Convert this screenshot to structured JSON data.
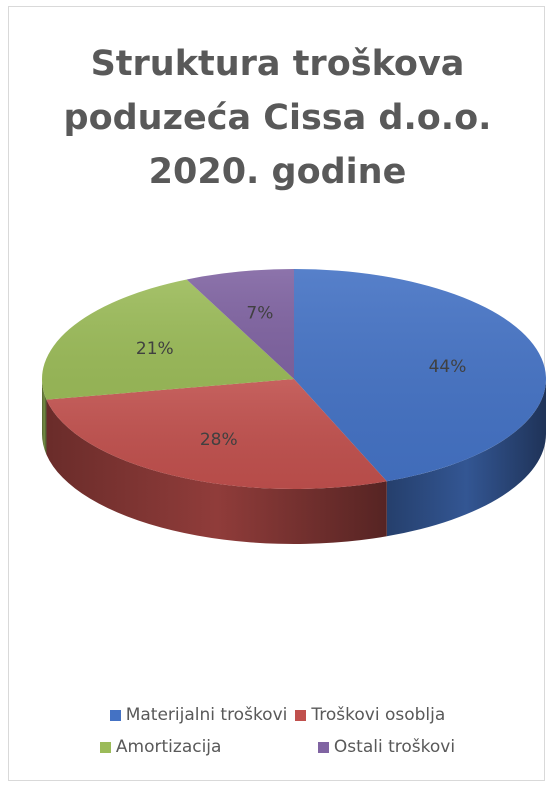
{
  "chart_data": {
    "type": "pie",
    "style": "3d",
    "title_lines": [
      "Struktura troškova",
      "poduzeća Cissa d.o.o.",
      "2020. godine"
    ],
    "slices": [
      {
        "name": "Materijalni troškovi",
        "value": 44,
        "label": "44%",
        "color": "#4472C4"
      },
      {
        "name": "Troškovi osoblja",
        "value": 28,
        "label": "28%",
        "color": "#C0504D"
      },
      {
        "name": "Amortizacija",
        "value": 21,
        "label": "21%",
        "color": "#9BBB59"
      },
      {
        "name": "Ostali troškovi",
        "value": 7,
        "label": "7%",
        "color": "#8064A2"
      }
    ],
    "legend_position": "bottom"
  }
}
